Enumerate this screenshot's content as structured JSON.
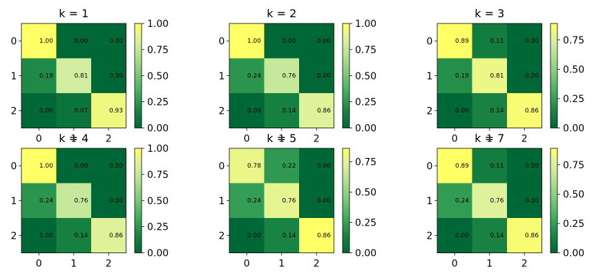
{
  "chart_data": [
    {
      "type": "heatmap",
      "title": "k = 1",
      "x_ticks": [
        "0",
        "1",
        "2"
      ],
      "y_ticks": [
        "0",
        "1",
        "2"
      ],
      "values": [
        [
          1.0,
          0.0,
          0.0
        ],
        [
          0.19,
          0.81,
          0.0
        ],
        [
          0.0,
          0.07,
          0.93
        ]
      ],
      "cell_labels": [
        [
          "1.00",
          "0.00",
          "0.00"
        ],
        [
          "0.19",
          "0.81",
          "0.00"
        ],
        [
          "0.00",
          "0.07",
          "0.93"
        ]
      ],
      "colorbar": {
        "range": [
          0,
          1.0
        ],
        "ticks": [
          "0.00",
          "0.25",
          "0.50",
          "0.75",
          "1.00"
        ],
        "tick_values": [
          0,
          0.25,
          0.5,
          0.75,
          1.0
        ]
      }
    },
    {
      "type": "heatmap",
      "title": "k = 2",
      "x_ticks": [
        "0",
        "1",
        "2"
      ],
      "y_ticks": [
        "0",
        "1",
        "2"
      ],
      "values": [
        [
          1.0,
          0.0,
          0.0
        ],
        [
          0.24,
          0.76,
          0.0
        ],
        [
          0.0,
          0.14,
          0.86
        ]
      ],
      "cell_labels": [
        [
          "1.00",
          "0.00",
          "0.00"
        ],
        [
          "0.24",
          "0.76",
          "0.00"
        ],
        [
          "0.00",
          "0.14",
          "0.86"
        ]
      ],
      "colorbar": {
        "range": [
          0,
          1.0
        ],
        "ticks": [
          "0.00",
          "0.25",
          "0.50",
          "0.75",
          "1.00"
        ],
        "tick_values": [
          0,
          0.25,
          0.5,
          0.75,
          1.0
        ]
      }
    },
    {
      "type": "heatmap",
      "title": "k = 3",
      "x_ticks": [
        "0",
        "1",
        "2"
      ],
      "y_ticks": [
        "0",
        "1",
        "2"
      ],
      "values": [
        [
          0.89,
          0.11,
          0.0
        ],
        [
          0.19,
          0.81,
          0.0
        ],
        [
          0.0,
          0.14,
          0.86
        ]
      ],
      "cell_labels": [
        [
          "0.89",
          "0.11",
          "0.00"
        ],
        [
          "0.19",
          "0.81",
          "0.00"
        ],
        [
          "0.00",
          "0.14",
          "0.86"
        ]
      ],
      "colorbar": {
        "range": [
          0,
          0.89
        ],
        "ticks": [
          "0.00",
          "0.25",
          "0.50",
          "0.75"
        ],
        "tick_values": [
          0,
          0.25,
          0.5,
          0.75
        ]
      }
    },
    {
      "type": "heatmap",
      "title": "k = 4",
      "x_ticks": [
        "0",
        "1",
        "2"
      ],
      "y_ticks": [
        "0",
        "1",
        "2"
      ],
      "values": [
        [
          1.0,
          0.0,
          0.0
        ],
        [
          0.24,
          0.76,
          0.0
        ],
        [
          0.0,
          0.14,
          0.86
        ]
      ],
      "cell_labels": [
        [
          "1.00",
          "0.00",
          "0.00"
        ],
        [
          "0.24",
          "0.76",
          "0.00"
        ],
        [
          "0.00",
          "0.14",
          "0.86"
        ]
      ],
      "colorbar": {
        "range": [
          0,
          1.0
        ],
        "ticks": [
          "0.00",
          "0.25",
          "0.50",
          "0.75",
          "1.00"
        ],
        "tick_values": [
          0,
          0.25,
          0.5,
          0.75,
          1.0
        ]
      }
    },
    {
      "type": "heatmap",
      "title": "k = 5",
      "x_ticks": [
        "0",
        "1",
        "2"
      ],
      "y_ticks": [
        "0",
        "1",
        "2"
      ],
      "values": [
        [
          0.78,
          0.22,
          0.0
        ],
        [
          0.24,
          0.76,
          0.0
        ],
        [
          0.0,
          0.14,
          0.86
        ]
      ],
      "cell_labels": [
        [
          "0.78",
          "0.22",
          "0.00"
        ],
        [
          "0.24",
          "0.76",
          "0.00"
        ],
        [
          "0.00",
          "0.14",
          "0.86"
        ]
      ],
      "colorbar": {
        "range": [
          0,
          0.86
        ],
        "ticks": [
          "0.00",
          "0.25",
          "0.50",
          "0.75"
        ],
        "tick_values": [
          0,
          0.25,
          0.5,
          0.75
        ]
      }
    },
    {
      "type": "heatmap",
      "title": "k = 7",
      "x_ticks": [
        "0",
        "1",
        "2"
      ],
      "y_ticks": [
        "0",
        "1",
        "2"
      ],
      "values": [
        [
          0.89,
          0.11,
          0.0
        ],
        [
          0.24,
          0.76,
          0.0
        ],
        [
          0.0,
          0.14,
          0.86
        ]
      ],
      "cell_labels": [
        [
          "0.89",
          "0.11",
          "0.00"
        ],
        [
          "0.24",
          "0.76",
          "0.00"
        ],
        [
          "0.00",
          "0.14",
          "0.86"
        ]
      ],
      "colorbar": {
        "range": [
          0,
          0.89
        ],
        "ticks": [
          "0.00",
          "0.25",
          "0.50",
          "0.75"
        ],
        "tick_values": [
          0,
          0.25,
          0.5,
          0.75
        ]
      }
    }
  ],
  "colormap": [
    "#006837",
    "#1a8443",
    "#41ab5d",
    "#78c679",
    "#addd8e",
    "#d9f0a3",
    "#ffff66"
  ]
}
